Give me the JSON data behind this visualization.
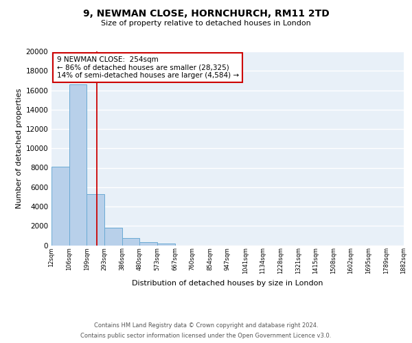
{
  "title": "9, NEWMAN CLOSE, HORNCHURCH, RM11 2TD",
  "subtitle": "Size of property relative to detached houses in London",
  "xlabel": "Distribution of detached houses by size in London",
  "ylabel": "Number of detached properties",
  "bar_values": [
    8100,
    16600,
    5300,
    1800,
    750,
    300,
    150,
    0,
    0,
    0,
    0,
    0,
    0,
    0,
    0,
    0,
    0,
    0,
    0,
    0
  ],
  "bin_labels": [
    "12sqm",
    "106sqm",
    "199sqm",
    "293sqm",
    "386sqm",
    "480sqm",
    "573sqm",
    "667sqm",
    "760sqm",
    "854sqm",
    "947sqm",
    "1041sqm",
    "1134sqm",
    "1228sqm",
    "1321sqm",
    "1415sqm",
    "1508sqm",
    "1602sqm",
    "1695sqm",
    "1789sqm",
    "1882sqm"
  ],
  "bar_color": "#b8d0ea",
  "bar_edge_color": "#6aaad4",
  "background_color": "#e8f0f8",
  "grid_color": "#ffffff",
  "annotation_box_edge": "#cc0000",
  "vline_color": "#cc0000",
  "annotation_text_line1": "9 NEWMAN CLOSE:  254sqm",
  "annotation_text_line2": "← 86% of detached houses are smaller (28,325)",
  "annotation_text_line3": "14% of semi-detached houses are larger (4,584) →",
  "ylim": [
    0,
    20000
  ],
  "yticks": [
    0,
    2000,
    4000,
    6000,
    8000,
    10000,
    12000,
    14000,
    16000,
    18000,
    20000
  ],
  "footer_line1": "Contains HM Land Registry data © Crown copyright and database right 2024.",
  "footer_line2": "Contains public sector information licensed under the Open Government Licence v3.0."
}
